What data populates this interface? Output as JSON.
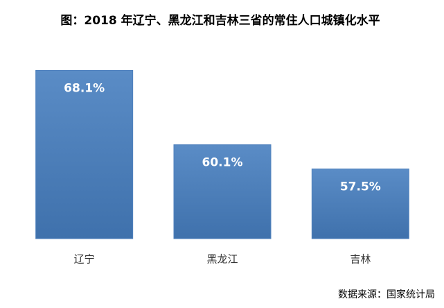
{
  "chart_data": {
    "type": "bar",
    "title": "图：2018 年辽宁、黑龙江和吉林三省的常住人口城镇化水平",
    "categories": [
      "辽宁",
      "黑龙江",
      "吉林"
    ],
    "values": [
      68.1,
      60.1,
      57.5
    ],
    "value_labels": [
      "68.1%",
      "60.1%",
      "57.5%"
    ],
    "color": "#4f81bd",
    "ylim": [
      50,
      70
    ],
    "source": "数据来源：国家统计局"
  }
}
